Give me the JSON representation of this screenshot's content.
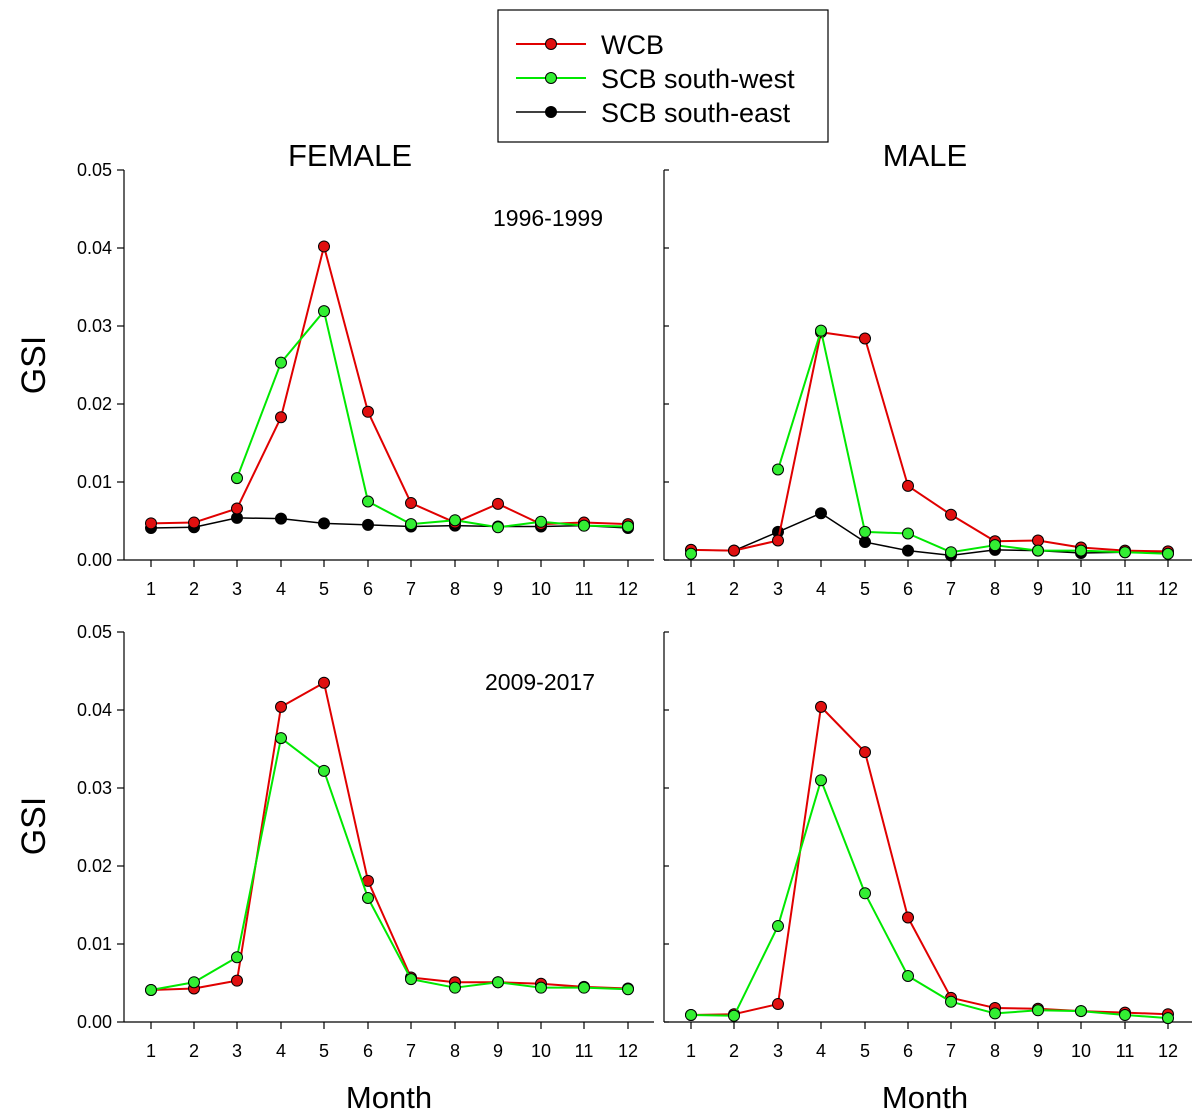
{
  "legend": {
    "entries": [
      {
        "label": "WCB",
        "color": "#e00000"
      },
      {
        "label": "SCB south-west",
        "color": "#00e800"
      },
      {
        "label": "SCB south-east",
        "color": "#000000"
      }
    ]
  },
  "colors": {
    "WCB": "#e00000",
    "SCB south-west": "#00e800",
    "SCB south-east": "#000000",
    "WCB_fill": "#e01010",
    "SCB south-west_fill": "#33ee33",
    "SCB south-east_fill": "#000000"
  },
  "labels": {
    "col_female": "FEMALE",
    "col_male": "MALE",
    "ylabel_top": "GSI",
    "ylabel_bottom": "GSI",
    "xlabel_left": "Month",
    "xlabel_right": "Month",
    "period_top": "1996-1999",
    "period_bottom": "2009-2017"
  },
  "y_ticks": [
    "0.00",
    "0.01",
    "0.02",
    "0.03",
    "0.04",
    "0.05"
  ],
  "x_ticks": [
    "1",
    "2",
    "3",
    "4",
    "5",
    "6",
    "7",
    "8",
    "9",
    "10",
    "11",
    "12"
  ],
  "chart_data": [
    {
      "type": "line",
      "panel": "female-1996-1999",
      "title": "FEMALE",
      "annotation": "1996-1999",
      "xlabel": "",
      "ylabel": "GSI",
      "x": [
        1,
        2,
        3,
        4,
        5,
        6,
        7,
        8,
        9,
        10,
        11,
        12
      ],
      "ylim": [
        0,
        0.05
      ],
      "series": [
        {
          "name": "WCB",
          "values": [
            0.0047,
            0.0048,
            0.0066,
            0.0183,
            0.0402,
            0.019,
            0.0073,
            0.0048,
            0.0072,
            0.0046,
            0.0048,
            0.0046
          ]
        },
        {
          "name": "SCB south-west",
          "values": [
            null,
            null,
            0.0105,
            0.0253,
            0.0319,
            0.0075,
            0.0046,
            0.0051,
            0.0042,
            0.0049,
            0.0044,
            0.0043
          ]
        },
        {
          "name": "SCB south-east",
          "values": [
            0.0041,
            0.0042,
            0.0054,
            0.0053,
            0.0047,
            0.0045,
            0.0043,
            0.0044,
            0.0043,
            0.0043,
            0.0044,
            0.0041
          ]
        }
      ]
    },
    {
      "type": "line",
      "panel": "male-1996-1999",
      "title": "MALE",
      "xlabel": "",
      "ylabel": "",
      "x": [
        1,
        2,
        3,
        4,
        5,
        6,
        7,
        8,
        9,
        10,
        11,
        12
      ],
      "ylim": [
        0,
        0.05
      ],
      "series": [
        {
          "name": "WCB",
          "values": [
            0.0013,
            0.0012,
            0.0025,
            0.0292,
            0.0284,
            0.0095,
            0.0058,
            0.0024,
            0.0025,
            0.0016,
            0.0012,
            0.0011
          ]
        },
        {
          "name": "SCB south-west",
          "values": [
            0.0008,
            null,
            0.0116,
            0.0294,
            0.0036,
            0.0034,
            0.001,
            0.0019,
            0.0012,
            0.0012,
            0.001,
            0.0008
          ]
        },
        {
          "name": "SCB south-east",
          "values": [
            0.0013,
            0.0012,
            0.0036,
            0.006,
            0.0023,
            0.0012,
            0.0006,
            0.0013,
            0.0012,
            0.0009,
            0.001,
            0.0009
          ]
        }
      ]
    },
    {
      "type": "line",
      "panel": "female-2009-2017",
      "annotation": "2009-2017",
      "xlabel": "Month",
      "ylabel": "GSI",
      "x": [
        1,
        2,
        3,
        4,
        5,
        6,
        7,
        8,
        9,
        10,
        11,
        12
      ],
      "ylim": [
        0,
        0.05
      ],
      "series": [
        {
          "name": "WCB",
          "values": [
            0.0041,
            0.0043,
            0.0053,
            0.0404,
            0.0435,
            0.0181,
            0.0057,
            0.0051,
            0.0051,
            0.0049,
            0.0045,
            0.0043
          ]
        },
        {
          "name": "SCB south-west",
          "values": [
            0.0041,
            0.0051,
            0.0083,
            0.0364,
            0.0322,
            0.0159,
            0.0055,
            0.0044,
            0.0051,
            0.0044,
            0.0044,
            0.0042
          ]
        }
      ]
    },
    {
      "type": "line",
      "panel": "male-2009-2017",
      "xlabel": "Month",
      "ylabel": "",
      "x": [
        1,
        2,
        3,
        4,
        5,
        6,
        7,
        8,
        9,
        10,
        11,
        12
      ],
      "ylim": [
        0,
        0.05
      ],
      "series": [
        {
          "name": "WCB",
          "values": [
            0.0009,
            0.001,
            0.0023,
            0.0404,
            0.0346,
            0.0134,
            0.0031,
            0.0018,
            0.0017,
            0.0014,
            0.0012,
            0.001
          ]
        },
        {
          "name": "SCB south-west",
          "values": [
            0.0009,
            0.0008,
            0.0123,
            0.031,
            0.0165,
            0.0059,
            0.0026,
            0.0011,
            0.0015,
            0.0014,
            0.0009,
            0.0005
          ]
        }
      ]
    }
  ]
}
